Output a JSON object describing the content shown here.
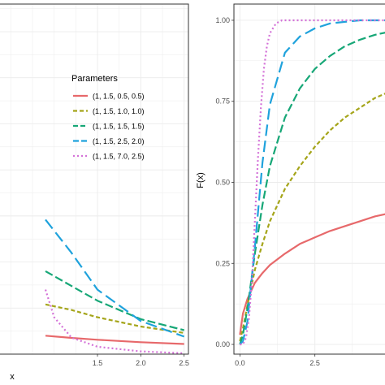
{
  "chart_data": [
    {
      "type": "line",
      "panel": "left",
      "xlabel": "x",
      "ylabel": "",
      "xlim": [
        0,
        2.55
      ],
      "ylim": [
        0,
        1.9
      ],
      "xticks": [
        "1.5",
        "2.0",
        "2.5"
      ],
      "xtick_values": [
        1.5,
        2.0,
        2.5
      ],
      "grid": true,
      "legend": {
        "title": "Parameters",
        "placement": "top-right",
        "entries": [
          "(1, 1.5, 0.5, 0.5)",
          "(1, 1.5, 1.0, 1.0)",
          "(1, 1.5, 1.5, 1.5)",
          "(1, 1.5, 2.5, 2.0)",
          "(1, 1.5, 7.0, 2.5)"
        ]
      },
      "series": [
        {
          "name": "(1, 1.5, 0.5, 0.5)",
          "x": [
            0.9,
            1.2,
            1.5,
            2.0,
            2.5
          ],
          "y": [
            0.1,
            0.088,
            0.078,
            0.065,
            0.055
          ]
        },
        {
          "name": "(1, 1.5, 1.0, 1.0)",
          "x": [
            0.9,
            1.2,
            1.5,
            2.0,
            2.5
          ],
          "y": [
            0.27,
            0.24,
            0.2,
            0.15,
            0.115
          ]
        },
        {
          "name": "(1, 1.5, 1.5, 1.5)",
          "x": [
            0.9,
            1.2,
            1.5,
            2.0,
            2.5
          ],
          "y": [
            0.45,
            0.37,
            0.29,
            0.19,
            0.13
          ]
        },
        {
          "name": "(1, 1.5, 2.5, 2.0)",
          "x": [
            0.9,
            1.2,
            1.5,
            2.0,
            2.5
          ],
          "y": [
            0.73,
            0.55,
            0.35,
            0.18,
            0.095
          ]
        },
        {
          "name": "(1, 1.5, 7.0, 2.5)",
          "x": [
            0.9,
            1.0,
            1.2,
            1.5,
            2.0,
            2.5
          ],
          "y": [
            0.35,
            0.2,
            0.09,
            0.04,
            0.015,
            0.005
          ]
        }
      ]
    },
    {
      "type": "line",
      "panel": "right",
      "xlabel": "",
      "ylabel": "F(x)",
      "xlim": [
        -0.2,
        5.0
      ],
      "ylim": [
        -0.03,
        1.05
      ],
      "xticks": [
        "0.0",
        "2.5"
      ],
      "xtick_values": [
        0.0,
        2.5
      ],
      "yticks": [
        "0.00",
        "0.25",
        "0.50",
        "0.75",
        "1.00"
      ],
      "ytick_values": [
        0.0,
        0.25,
        0.5,
        0.75,
        1.0
      ],
      "grid": true,
      "series": [
        {
          "name": "(1, 1.5, 0.5, 0.5)",
          "x": [
            0,
            0.1,
            0.25,
            0.5,
            0.75,
            1.0,
            1.5,
            2.0,
            2.5,
            3.0,
            3.5,
            4.0,
            4.5,
            5.0
          ],
          "y": [
            0.03,
            0.095,
            0.14,
            0.19,
            0.22,
            0.245,
            0.28,
            0.31,
            0.33,
            0.35,
            0.365,
            0.38,
            0.395,
            0.405
          ]
        },
        {
          "name": "(1, 1.5, 1.0, 1.0)",
          "x": [
            0,
            0.1,
            0.25,
            0.5,
            0.75,
            1.0,
            1.5,
            2.0,
            2.5,
            3.0,
            3.5,
            4.0,
            4.5,
            5.0
          ],
          "y": [
            0.01,
            0.05,
            0.12,
            0.23,
            0.31,
            0.38,
            0.48,
            0.55,
            0.61,
            0.66,
            0.7,
            0.73,
            0.76,
            0.78
          ]
        },
        {
          "name": "(1, 1.5, 1.5, 1.5)",
          "x": [
            0,
            0.1,
            0.25,
            0.5,
            0.75,
            1.0,
            1.5,
            2.0,
            2.5,
            3.0,
            3.5,
            4.0,
            4.5,
            5.0
          ],
          "y": [
            0.0,
            0.03,
            0.11,
            0.28,
            0.43,
            0.55,
            0.7,
            0.79,
            0.85,
            0.89,
            0.92,
            0.94,
            0.955,
            0.965
          ]
        },
        {
          "name": "(1, 1.5, 2.5, 2.0)",
          "x": [
            0,
            0.1,
            0.25,
            0.5,
            0.75,
            1.0,
            1.5,
            2.0,
            2.5,
            3.0,
            3.5,
            4.0,
            4.5,
            5.0
          ],
          "y": [
            0.0,
            0.01,
            0.07,
            0.3,
            0.56,
            0.74,
            0.9,
            0.95,
            0.975,
            0.99,
            0.995,
            1.0,
            1.0,
            1.0
          ]
        },
        {
          "name": "(1, 1.5, 7.0, 2.5)",
          "x": [
            0,
            0.1,
            0.2,
            0.3,
            0.4,
            0.5,
            0.6,
            0.7,
            0.8,
            0.9,
            1.0,
            1.2,
            1.4,
            1.6,
            5.0
          ],
          "y": [
            0.0,
            0.0,
            0.02,
            0.08,
            0.2,
            0.38,
            0.57,
            0.73,
            0.85,
            0.92,
            0.96,
            0.99,
            1.0,
            1.0,
            1.0
          ]
        }
      ]
    }
  ],
  "styles": {
    "colors": [
      "#e7696b",
      "#a5a51a",
      "#17a777",
      "#1fa2dc",
      "#d472d8"
    ],
    "dashes": [
      "",
      "5 3",
      "10 4",
      "14 6",
      "2 3"
    ],
    "grid_color": "#ebebeb",
    "panel_border": "#333333"
  }
}
